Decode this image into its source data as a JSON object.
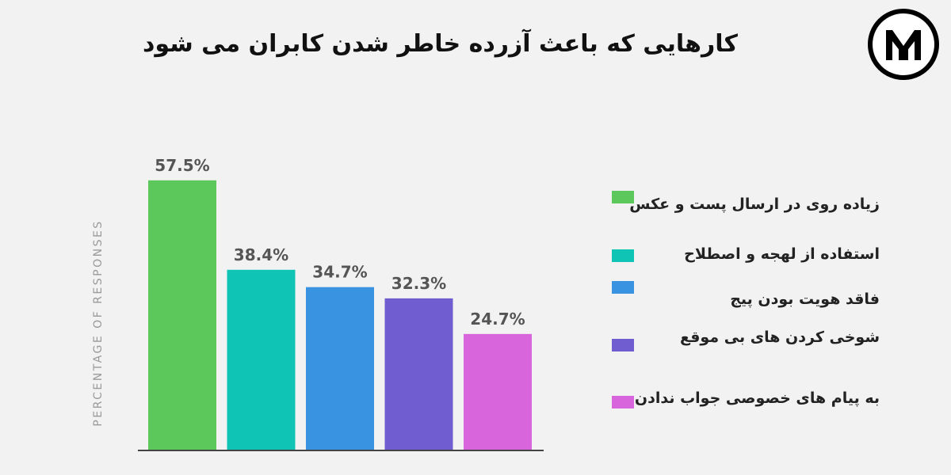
{
  "chart_data": {
    "type": "bar",
    "title": "کارهایی که باعث آزرده خاطر شدن کابران می شود",
    "ylabel": "PERCENTAGE OF RESPONSES",
    "categories": [
      "زیاده روی در ارسال پست و عکس",
      "استفاده از لهجه و اصطلاح",
      "فاقد هویت بودن پیج",
      "شوخی کردن های بی موقع",
      "به پیام های خصوصی جواب ندادن"
    ],
    "values": [
      57.5,
      38.4,
      34.7,
      32.3,
      24.7
    ],
    "value_labels": [
      "57.5%",
      "38.4%",
      "34.7%",
      "32.3%",
      "24.7%"
    ],
    "colors": [
      "#5cc85c",
      "#0fc4b4",
      "#3a93e0",
      "#705ed0",
      "#d965dc"
    ],
    "ylim": [
      0,
      60
    ],
    "grid": false,
    "legend_position": "right"
  }
}
